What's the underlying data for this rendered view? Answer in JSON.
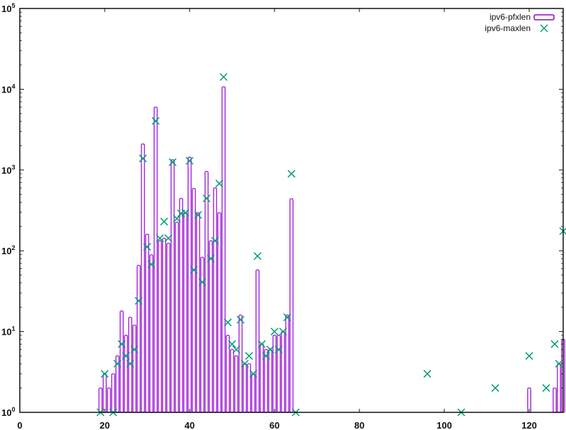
{
  "chart_data": {
    "type": "bar",
    "title": "",
    "xlabel": "",
    "ylabel": "",
    "xlim": [
      0,
      128
    ],
    "ylim": [
      1,
      100000
    ],
    "yscale": "log",
    "grid": false,
    "legend_position": "top-right",
    "x_ticks": [
      0,
      20,
      40,
      60,
      80,
      100,
      120
    ],
    "x_tick_labels": [
      "0",
      "20",
      "40",
      "60",
      "80",
      "100",
      "120"
    ],
    "y_ticks": [
      1,
      10,
      100,
      1000,
      10000,
      100000
    ],
    "y_tick_labels": [
      {
        "base": "10",
        "exp": "0"
      },
      {
        "base": "10",
        "exp": "1"
      },
      {
        "base": "10",
        "exp": "2"
      },
      {
        "base": "10",
        "exp": "3"
      },
      {
        "base": "10",
        "exp": "4"
      },
      {
        "base": "10",
        "exp": "5"
      }
    ],
    "series": [
      {
        "name": "ipv6-pfxlen",
        "style": "boxes",
        "color": "#9400D3",
        "x": [
          19,
          20,
          21,
          22,
          23,
          24,
          25,
          26,
          27,
          28,
          29,
          30,
          31,
          32,
          33,
          34,
          35,
          36,
          37,
          38,
          39,
          40,
          41,
          42,
          43,
          44,
          45,
          46,
          47,
          48,
          49,
          50,
          51,
          52,
          53,
          54,
          55,
          56,
          57,
          58,
          59,
          60,
          61,
          62,
          63,
          64,
          120,
          126,
          127,
          128
        ],
        "values": [
          2,
          3,
          2,
          3,
          5,
          18,
          9,
          15,
          12,
          66,
          2100,
          160,
          89,
          6000,
          133,
          143,
          124,
          1340,
          226,
          445,
          296,
          1440,
          590,
          296,
          83,
          960,
          133,
          600,
          296,
          10700,
          9,
          6,
          5,
          16,
          4,
          4,
          3,
          58,
          7,
          6,
          6,
          9,
          9,
          10,
          16,
          440,
          2,
          2,
          4,
          8
        ]
      },
      {
        "name": "ipv6-maxlen",
        "style": "points",
        "color": "#009E73",
        "x": [
          19,
          20,
          22,
          23,
          24,
          25,
          26,
          27,
          28,
          29,
          30,
          31,
          32,
          33,
          34,
          35,
          36,
          37,
          38,
          39,
          40,
          41,
          42,
          43,
          44,
          45,
          46,
          47,
          48,
          49,
          50,
          51,
          52,
          53,
          54,
          55,
          56,
          57,
          58,
          59,
          60,
          61,
          62,
          63,
          64,
          65,
          96,
          104,
          112,
          120,
          124,
          126,
          127,
          128
        ],
        "values": [
          1,
          3,
          1,
          4,
          7,
          5,
          4,
          6,
          24,
          1390,
          112,
          68,
          4050,
          143,
          230,
          143,
          1250,
          250,
          290,
          296,
          1300,
          58,
          278,
          41,
          445,
          80,
          133,
          680,
          14200,
          13,
          7,
          6,
          14,
          4,
          5,
          3,
          86,
          7,
          5,
          6,
          10,
          6,
          10,
          15,
          900,
          1,
          3,
          1,
          2,
          5,
          2,
          7,
          4,
          175
        ]
      }
    ]
  }
}
